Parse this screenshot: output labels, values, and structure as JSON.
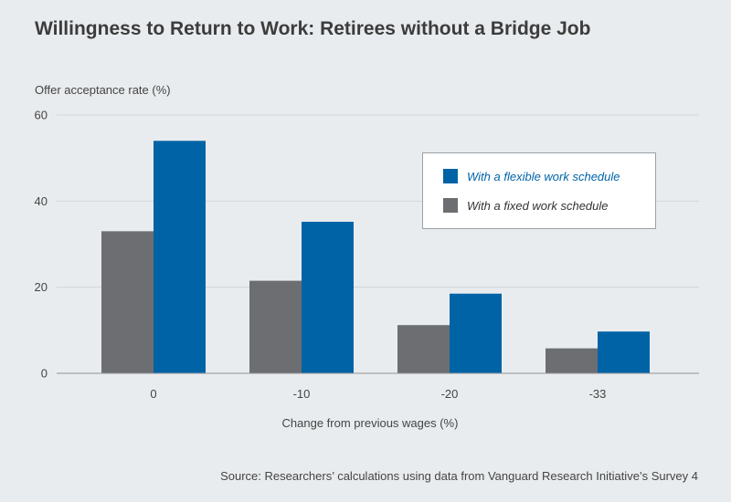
{
  "title": "Willingness to Return to Work: Retirees without a Bridge Job",
  "source": "Source: Researchers’ calculations using data from Vanguard Research Initiative’s Survey 4",
  "chart_data": {
    "type": "bar",
    "title": "Willingness to Return to Work: Retirees without a Bridge Job",
    "xlabel": "Change from previous wages (%)",
    "ylabel": "Offer acceptance rate (%)",
    "categories": [
      "0",
      "-10",
      "-20",
      "-33"
    ],
    "ylim": [
      0,
      60
    ],
    "yticks": [
      0,
      20,
      40,
      60
    ],
    "grid": true,
    "legend_position": "top-right",
    "series": [
      {
        "name": "With a fixed work schedule",
        "values": [
          33,
          21.5,
          11.2,
          5.8
        ],
        "color": "#6d6e71"
      },
      {
        "name": "With a flexible work schedule",
        "values": [
          54,
          35.2,
          18.5,
          9.7
        ],
        "color": "#0063a6"
      }
    ],
    "legend_order": [
      1,
      0
    ]
  }
}
